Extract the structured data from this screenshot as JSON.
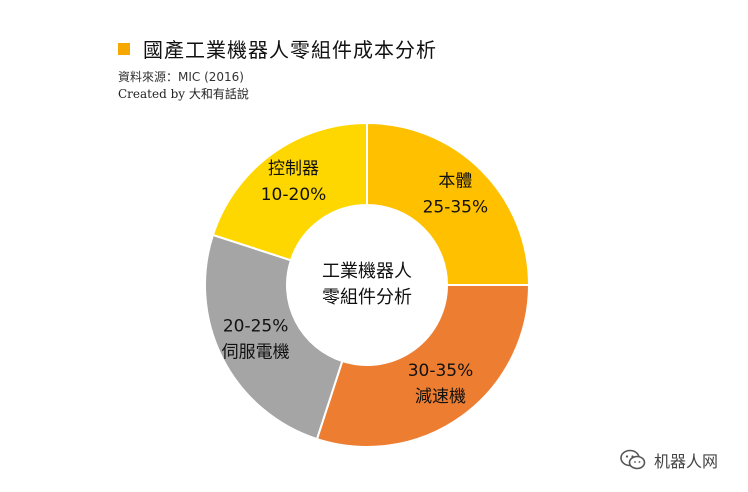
{
  "header": {
    "title": "國產工業機器人零組件成本分析",
    "source": "資料來源：MIC (2016)",
    "credit": "Created by 大和有話說"
  },
  "chart_data": {
    "type": "pie",
    "variant": "donut",
    "center_label": [
      "工業機器人",
      "零組件分析"
    ],
    "slices": [
      {
        "name": "本體",
        "range": "25-35%",
        "value": 25,
        "color": "#ffc000"
      },
      {
        "name": "減速機",
        "range": "30-35%",
        "value": 30,
        "color": "#ed7d31"
      },
      {
        "name": "伺服電機",
        "range": "20-25%",
        "value": 25,
        "color": "#a5a5a5"
      },
      {
        "name": "控制器",
        "range": "10-20%",
        "value": 20,
        "color": "#ffd700"
      }
    ],
    "label_order": {
      "本體": "name-first",
      "減速機": "range-first",
      "伺服電機": "range-first",
      "控制器": "name-first"
    },
    "start_angle": "12 o'clock",
    "direction": "clockwise"
  },
  "watermark": {
    "text": "机器人网",
    "icon": "wechat-icon"
  },
  "colors": {
    "title_marker": "#f5a800",
    "slice_border": "#ffffff"
  }
}
